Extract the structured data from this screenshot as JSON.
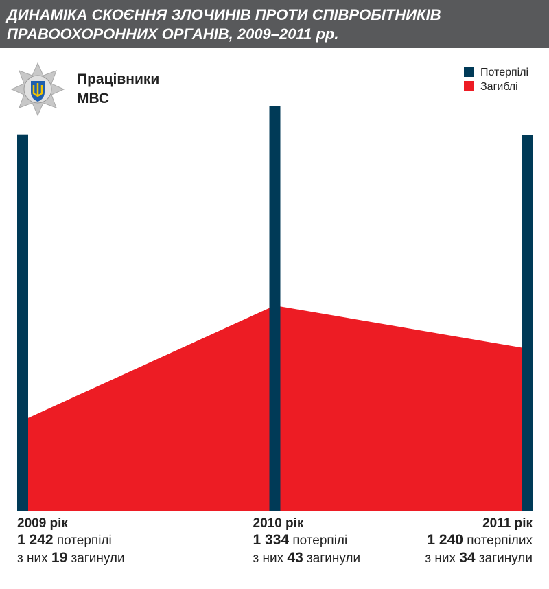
{
  "chart_data": {
    "type": "area-bars",
    "title": "ДИНАМІКА СКОЄННЯ ЗЛОЧИНІВ ПРОТИ СПІВРОБІТНИКІВ",
    "title_line2": "ПРАВООХОРОННИХ ОРГАНІВ, 2009–2011 рр.",
    "subtitle": "Працівники",
    "subtitle_line2": "МВС",
    "categories": [
      "2009 рік",
      "2010 рік",
      "2011 рік"
    ],
    "series": [
      {
        "name": "Потерпілі",
        "color": "#003a57",
        "values": [
          1242,
          1334,
          1240
        ],
        "value_labels": [
          "1 242",
          "1 334",
          "1 240"
        ],
        "words": [
          "потерпілі",
          "потерпілі",
          "потерпілих"
        ]
      },
      {
        "name": "Загиблі",
        "color": "#ed1c24",
        "values": [
          19,
          43,
          34
        ]
      }
    ],
    "of_them": "з них",
    "died_word": "загинули"
  }
}
